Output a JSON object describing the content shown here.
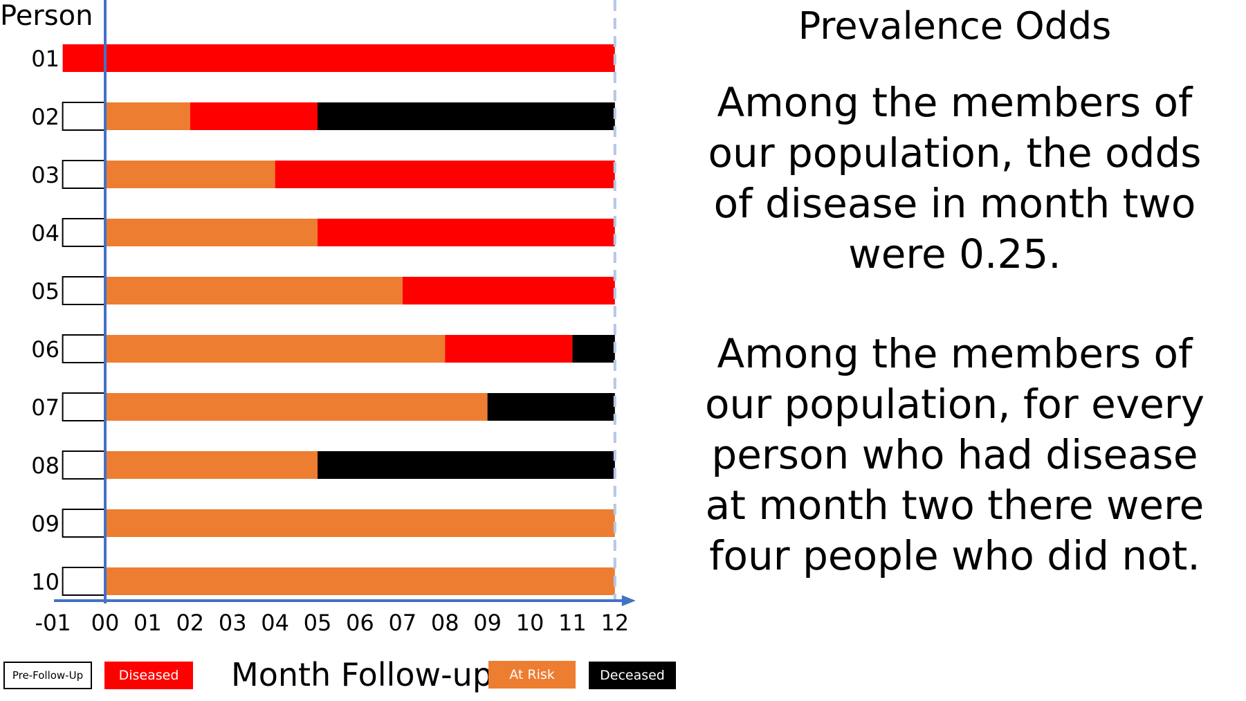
{
  "colors": {
    "pre": "#ffffff",
    "diseased": "#ff0000",
    "at_risk": "#ed7d31",
    "deceased": "#000000",
    "axis": "#4472c4"
  },
  "chart_data": {
    "type": "bar",
    "orientation": "horizontal-stacked",
    "ylabel": "Person",
    "xlabel": "Month Follow-up",
    "xlim": [
      -1,
      12
    ],
    "x_ticks": [
      "-01",
      "00",
      "01",
      "02",
      "03",
      "04",
      "05",
      "06",
      "07",
      "08",
      "09",
      "10",
      "11",
      "12"
    ],
    "categories": [
      "01",
      "02",
      "03",
      "04",
      "05",
      "06",
      "07",
      "08",
      "09",
      "10"
    ],
    "rows": [
      {
        "person": "01",
        "segments": [
          {
            "state": "diseased",
            "start": -1,
            "end": 12
          }
        ]
      },
      {
        "person": "02",
        "segments": [
          {
            "state": "pre",
            "start": -1,
            "end": 0
          },
          {
            "state": "at_risk",
            "start": 0,
            "end": 2
          },
          {
            "state": "diseased",
            "start": 2,
            "end": 5
          },
          {
            "state": "deceased",
            "start": 5,
            "end": 12
          }
        ]
      },
      {
        "person": "03",
        "segments": [
          {
            "state": "pre",
            "start": -1,
            "end": 0
          },
          {
            "state": "at_risk",
            "start": 0,
            "end": 4
          },
          {
            "state": "diseased",
            "start": 4,
            "end": 12
          }
        ]
      },
      {
        "person": "04",
        "segments": [
          {
            "state": "pre",
            "start": -1,
            "end": 0
          },
          {
            "state": "at_risk",
            "start": 0,
            "end": 5
          },
          {
            "state": "diseased",
            "start": 5,
            "end": 12
          }
        ]
      },
      {
        "person": "05",
        "segments": [
          {
            "state": "pre",
            "start": -1,
            "end": 0
          },
          {
            "state": "at_risk",
            "start": 0,
            "end": 7
          },
          {
            "state": "diseased",
            "start": 7,
            "end": 12
          }
        ]
      },
      {
        "person": "06",
        "segments": [
          {
            "state": "pre",
            "start": -1,
            "end": 0
          },
          {
            "state": "at_risk",
            "start": 0,
            "end": 8
          },
          {
            "state": "diseased",
            "start": 8,
            "end": 11
          },
          {
            "state": "deceased",
            "start": 11,
            "end": 12
          }
        ]
      },
      {
        "person": "07",
        "segments": [
          {
            "state": "pre",
            "start": -1,
            "end": 0
          },
          {
            "state": "at_risk",
            "start": 0,
            "end": 9
          },
          {
            "state": "deceased",
            "start": 9,
            "end": 12
          }
        ]
      },
      {
        "person": "08",
        "segments": [
          {
            "state": "pre",
            "start": -1,
            "end": 0
          },
          {
            "state": "at_risk",
            "start": 0,
            "end": 5
          },
          {
            "state": "deceased",
            "start": 5,
            "end": 12
          }
        ]
      },
      {
        "person": "09",
        "segments": [
          {
            "state": "pre",
            "start": -1,
            "end": 0
          },
          {
            "state": "at_risk",
            "start": 0,
            "end": 12
          }
        ]
      },
      {
        "person": "10",
        "segments": [
          {
            "state": "pre",
            "start": -1,
            "end": 0
          },
          {
            "state": "at_risk",
            "start": 0,
            "end": 12
          }
        ]
      }
    ],
    "legend": [
      {
        "state": "pre",
        "label": "Pre-Follow-Up"
      },
      {
        "state": "diseased",
        "label": "Diseased"
      },
      {
        "state": "at_risk",
        "label": "At Risk"
      },
      {
        "state": "deceased",
        "label": "Deceased"
      }
    ]
  },
  "panel": {
    "title": "Prevalence Odds",
    "para1": [
      "Among the members of",
      "our population, the odds",
      "of disease in month two",
      "were 0.25."
    ],
    "para2": [
      "Among the members of",
      "our population, for every",
      "person who had disease",
      "at month two there were",
      "four people who did not."
    ]
  }
}
